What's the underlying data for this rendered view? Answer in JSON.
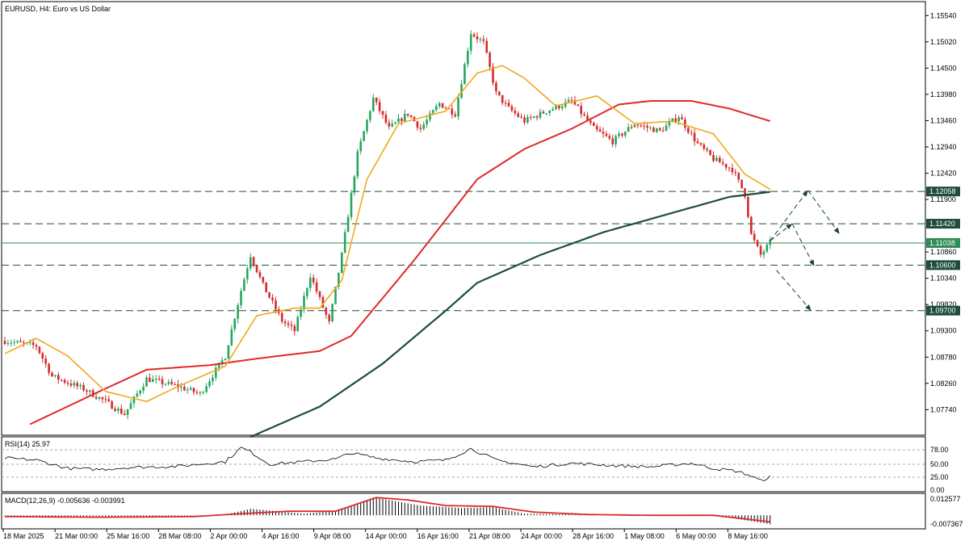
{
  "header": {
    "symbol_label": "EURUSD, H4:  Euro vs US Dollar"
  },
  "colors": {
    "bull": "#26a65b",
    "bear": "#d42b2b",
    "ma_fast": "#f0a81e",
    "ma_mid": "#e02a2a",
    "ma_slow": "#1e4d3a",
    "level_tag": "#1e4d3a",
    "rsi_line": "#000000",
    "macd_hist": "#000000",
    "macd_signal": "#e02a2a"
  },
  "price_axis": {
    "ticks": [
      "1.15540",
      "1.15020",
      "1.14500",
      "1.13980",
      "1.13460",
      "1.12940",
      "1.12420",
      "1.11900",
      "1.10860",
      "1.10340",
      "1.09820",
      "1.09300",
      "1.08780",
      "1.08260",
      "1.07740"
    ]
  },
  "levels": [
    {
      "name": "resistance-1",
      "value": 1.12058,
      "label": "1.12058"
    },
    {
      "name": "resistance-2",
      "value": 1.1142,
      "label": "1.11420"
    },
    {
      "name": "current-price",
      "value": 1.11038,
      "label": "1.11038"
    },
    {
      "name": "support-1",
      "value": 1.106,
      "label": "1.10600"
    },
    {
      "name": "support-2",
      "value": 1.097,
      "label": "1.09700"
    }
  ],
  "time_axis": {
    "labels": [
      "18 Mar 2025",
      "21 Mar 00:00",
      "25 Mar 16:00",
      "28 Mar 08:00",
      "2 Apr 00:00",
      "4 Apr 16:00",
      "9 Apr 08:00",
      "14 Apr 00:00",
      "16 Apr 16:00",
      "21 Apr 08:00",
      "24 Apr 00:00",
      "28 Apr 16:00",
      "1 May 08:00",
      "6 May 00:00",
      "8 May 16:00"
    ]
  },
  "rsi": {
    "label": "RSI(14) 25.97",
    "ticks": [
      "78.00",
      "50.00",
      "25.00",
      "0.00"
    ]
  },
  "macd": {
    "label": "MACD(12,26,9) -0.005636 -0.003991",
    "ticks": [
      "0.012577",
      "-0.007367"
    ]
  },
  "chart_data": {
    "type": "candlestick",
    "symbol": "EURUSD",
    "timeframe": "H4",
    "price_range": [
      1.0725,
      1.158
    ],
    "anchors": [
      [
        0,
        1.091
      ],
      [
        10,
        1.09
      ],
      [
        15,
        1.084
      ],
      [
        25,
        1.0815
      ],
      [
        32,
        1.079
      ],
      [
        38,
        1.0765
      ],
      [
        45,
        1.0835
      ],
      [
        55,
        1.082
      ],
      [
        62,
        1.0805
      ],
      [
        70,
        1.088
      ],
      [
        75,
        1.101
      ],
      [
        78,
        1.108
      ],
      [
        82,
        1.102
      ],
      [
        88,
        1.095
      ],
      [
        92,
        1.093
      ],
      [
        97,
        1.104
      ],
      [
        103,
        1.0945
      ],
      [
        107,
        1.108
      ],
      [
        112,
        1.128
      ],
      [
        117,
        1.139
      ],
      [
        122,
        1.133
      ],
      [
        128,
        1.136
      ],
      [
        132,
        1.133
      ],
      [
        138,
        1.138
      ],
      [
        143,
        1.136
      ],
      [
        148,
        1.152
      ],
      [
        152,
        1.15
      ],
      [
        156,
        1.14
      ],
      [
        160,
        1.137
      ],
      [
        165,
        1.1345
      ],
      [
        172,
        1.1365
      ],
      [
        180,
        1.1385
      ],
      [
        187,
        1.133
      ],
      [
        193,
        1.1305
      ],
      [
        200,
        1.134
      ],
      [
        208,
        1.1325
      ],
      [
        214,
        1.1355
      ],
      [
        220,
        1.13
      ],
      [
        225,
        1.127
      ],
      [
        231,
        1.125
      ],
      [
        235,
        1.12
      ],
      [
        237,
        1.112
      ],
      [
        240,
        1.108
      ],
      [
        243,
        1.1104
      ]
    ],
    "ma_fast_anchors": [
      [
        0,
        1.0885
      ],
      [
        10,
        1.0915
      ],
      [
        20,
        1.088
      ],
      [
        32,
        1.081
      ],
      [
        45,
        1.079
      ],
      [
        55,
        1.082
      ],
      [
        70,
        1.086
      ],
      [
        80,
        1.096
      ],
      [
        92,
        1.0975
      ],
      [
        100,
        1.0975
      ],
      [
        107,
        1.103
      ],
      [
        115,
        1.123
      ],
      [
        125,
        1.134
      ],
      [
        140,
        1.1365
      ],
      [
        150,
        1.144
      ],
      [
        158,
        1.1455
      ],
      [
        165,
        1.143
      ],
      [
        175,
        1.1375
      ],
      [
        188,
        1.1395
      ],
      [
        200,
        1.134
      ],
      [
        212,
        1.1345
      ],
      [
        225,
        1.132
      ],
      [
        235,
        1.124
      ],
      [
        243,
        1.121
      ]
    ],
    "ma_mid_anchors": [
      [
        8,
        1.0745
      ],
      [
        30,
        1.081
      ],
      [
        45,
        1.0853
      ],
      [
        65,
        1.0862
      ],
      [
        80,
        1.0875
      ],
      [
        100,
        1.089
      ],
      [
        110,
        1.092
      ],
      [
        130,
        1.107
      ],
      [
        150,
        1.123
      ],
      [
        165,
        1.129
      ],
      [
        180,
        1.133
      ],
      [
        195,
        1.1378
      ],
      [
        205,
        1.1385
      ],
      [
        218,
        1.1385
      ],
      [
        230,
        1.137
      ],
      [
        243,
        1.1345
      ]
    ],
    "ma_slow_anchors": [
      [
        78,
        1.072
      ],
      [
        100,
        1.078
      ],
      [
        120,
        1.0865
      ],
      [
        140,
        1.097
      ],
      [
        150,
        1.1025
      ],
      [
        170,
        1.108
      ],
      [
        190,
        1.1125
      ],
      [
        210,
        1.116
      ],
      [
        230,
        1.1195
      ],
      [
        243,
        1.1205
      ]
    ],
    "rsi_anchors": [
      [
        0,
        62
      ],
      [
        10,
        58
      ],
      [
        20,
        42
      ],
      [
        30,
        40
      ],
      [
        40,
        44
      ],
      [
        55,
        46
      ],
      [
        70,
        55
      ],
      [
        75,
        82
      ],
      [
        78,
        74
      ],
      [
        84,
        50
      ],
      [
        95,
        55
      ],
      [
        105,
        60
      ],
      [
        110,
        72
      ],
      [
        118,
        62
      ],
      [
        130,
        55
      ],
      [
        140,
        58
      ],
      [
        148,
        80
      ],
      [
        156,
        58
      ],
      [
        168,
        45
      ],
      [
        180,
        52
      ],
      [
        195,
        47
      ],
      [
        205,
        45
      ],
      [
        218,
        52
      ],
      [
        225,
        42
      ],
      [
        232,
        37
      ],
      [
        236,
        30
      ],
      [
        240,
        18
      ],
      [
        243,
        25.97
      ]
    ],
    "macd_anchors": [
      [
        0,
        -0.0005
      ],
      [
        20,
        -0.0015
      ],
      [
        40,
        -0.001
      ],
      [
        60,
        -0.001
      ],
      [
        70,
        0.0005
      ],
      [
        78,
        0.004
      ],
      [
        84,
        0.003
      ],
      [
        95,
        0.001
      ],
      [
        105,
        0.003
      ],
      [
        112,
        0.0075
      ],
      [
        117,
        0.011
      ],
      [
        122,
        0.0095
      ],
      [
        132,
        0.006
      ],
      [
        145,
        0.0045
      ],
      [
        155,
        0.005
      ],
      [
        165,
        0.001
      ],
      [
        180,
        0.0005
      ],
      [
        200,
        -0.0005
      ],
      [
        220,
        0.0005
      ],
      [
        232,
        -0.002
      ],
      [
        243,
        -0.0056
      ]
    ],
    "signal_anchors": [
      [
        0,
        -0.0008
      ],
      [
        30,
        -0.0012
      ],
      [
        60,
        -0.0008
      ],
      [
        75,
        0.001
      ],
      [
        90,
        0.0025
      ],
      [
        105,
        0.0025
      ],
      [
        118,
        0.011
      ],
      [
        128,
        0.0095
      ],
      [
        140,
        0.006
      ],
      [
        155,
        0.0055
      ],
      [
        168,
        0.002
      ],
      [
        185,
        0.0005
      ],
      [
        205,
        0.0
      ],
      [
        225,
        0.0
      ],
      [
        243,
        -0.004
      ]
    ],
    "arrows": [
      [
        243,
        1.1108,
        255,
        1.1208
      ],
      [
        255,
        1.1208,
        265,
        1.1122
      ],
      [
        243,
        1.1108,
        250,
        1.1142
      ],
      [
        250,
        1.1142,
        257,
        1.1058
      ],
      [
        245,
        1.105,
        256,
        1.097
      ]
    ]
  }
}
